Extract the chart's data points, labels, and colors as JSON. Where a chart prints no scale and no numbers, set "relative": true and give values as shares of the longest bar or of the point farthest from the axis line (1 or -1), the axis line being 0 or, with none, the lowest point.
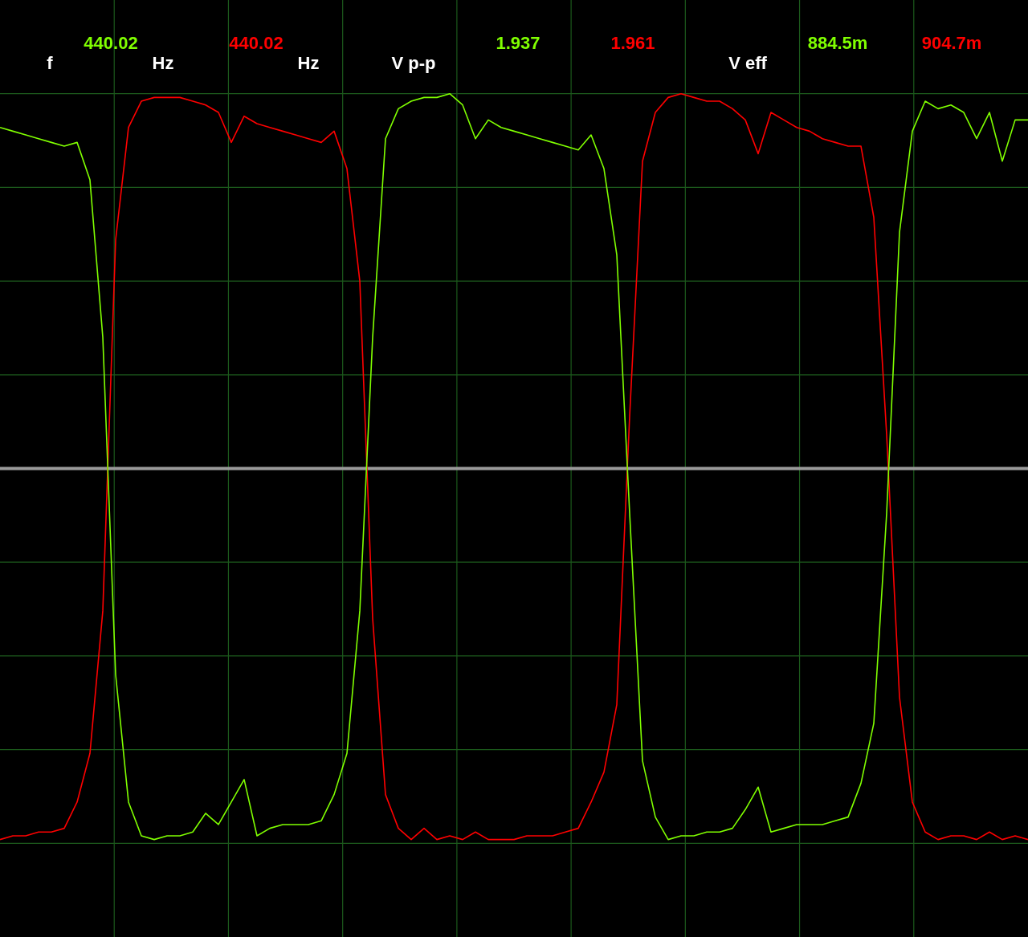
{
  "chart_data": {
    "type": "line",
    "relative": true,
    "grid": true,
    "marker": "none",
    "annotations": [
      "f",
      "440.02",
      "Hz",
      "440.02",
      "Hz",
      "V p-p",
      "1.937",
      "1.961",
      "V eff",
      "884.5m",
      "904.7m"
    ],
    "categories": [
      null,
      null,
      null,
      null,
      null,
      null,
      null,
      null,
      null,
      null,
      null,
      null,
      null,
      null,
      null,
      null,
      null,
      null,
      null,
      null,
      null,
      null,
      null,
      null,
      null,
      null,
      null,
      null,
      null,
      null,
      null,
      null,
      null,
      null,
      null,
      null,
      null,
      null,
      null,
      null,
      null,
      null,
      null,
      null,
      null,
      null,
      null,
      null,
      null,
      null,
      null,
      null,
      null,
      null,
      null,
      null,
      null,
      null,
      null,
      null,
      null,
      null,
      null,
      null,
      null,
      null,
      null,
      null,
      null,
      null,
      null,
      null,
      null,
      null,
      null,
      null,
      null,
      null,
      null,
      null,
      null
    ],
    "series": [
      {
        "color": "#80ff00",
        "values": [
          0.91,
          0.9,
          0.89,
          0.88,
          0.87,
          0.86,
          0.87,
          0.77,
          0.35,
          -0.55,
          -0.89,
          -0.98,
          -0.99,
          -0.98,
          -0.98,
          -0.97,
          -0.92,
          -0.95,
          -0.89,
          -0.83,
          -0.98,
          -0.96,
          -0.95,
          -0.95,
          -0.95,
          -0.94,
          -0.87,
          -0.76,
          -0.38,
          0.35,
          0.88,
          0.96,
          0.98,
          0.99,
          0.99,
          1.0,
          0.97,
          0.88,
          0.93,
          0.91,
          0.9,
          0.89,
          0.88,
          0.87,
          0.86,
          0.85,
          0.89,
          0.8,
          0.57,
          -0.12,
          -0.78,
          -0.93,
          -0.99,
          -0.98,
          -0.98,
          -0.97,
          -0.97,
          -0.96,
          -0.91,
          -0.85,
          -0.97,
          -0.96,
          -0.95,
          -0.95,
          -0.95,
          -0.94,
          -0.93,
          -0.84,
          -0.68,
          -0.12,
          0.63,
          0.9,
          0.98,
          0.96,
          0.97,
          0.95,
          0.88,
          0.95,
          0.82,
          0.93,
          0.93
        ]
      },
      {
        "color": "#ff0000",
        "values": [
          -0.99,
          -0.98,
          -0.98,
          -0.97,
          -0.97,
          -0.96,
          -0.89,
          -0.76,
          -0.38,
          0.61,
          0.91,
          0.98,
          0.99,
          0.99,
          0.99,
          0.98,
          0.97,
          0.95,
          0.87,
          0.94,
          0.92,
          0.91,
          0.9,
          0.89,
          0.88,
          0.87,
          0.9,
          0.8,
          0.5,
          -0.4,
          -0.87,
          -0.96,
          -0.99,
          -0.96,
          -0.99,
          -0.98,
          -0.99,
          -0.97,
          -0.99,
          -0.99,
          -0.99,
          -0.98,
          -0.98,
          -0.98,
          -0.97,
          -0.96,
          -0.89,
          -0.81,
          -0.63,
          0.14,
          0.82,
          0.95,
          0.99,
          1.0,
          0.99,
          0.98,
          0.98,
          0.96,
          0.93,
          0.84,
          0.95,
          0.93,
          0.91,
          0.9,
          0.88,
          0.87,
          0.86,
          0.86,
          0.67,
          0.09,
          -0.61,
          -0.89,
          -0.97,
          -0.99,
          -0.98,
          -0.98,
          -0.99,
          -0.97,
          -0.99,
          -0.98,
          -0.99
        ]
      }
    ]
  }
}
